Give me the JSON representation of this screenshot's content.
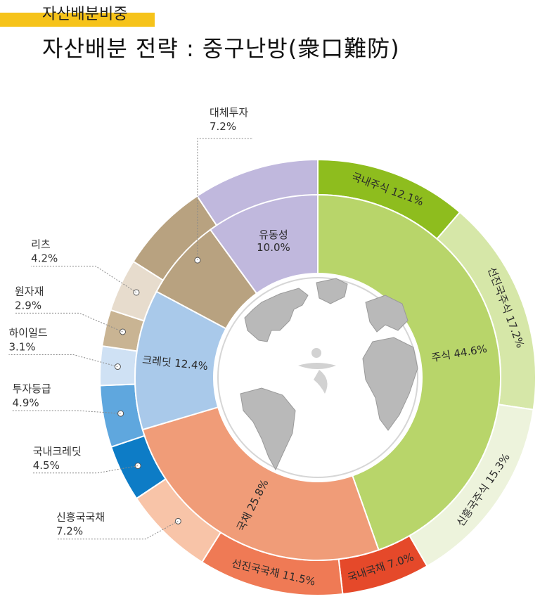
{
  "header": {
    "tag": "자산배분비중",
    "title": "자산배분 전략 : 중구난방(衆口難防)"
  },
  "chart_data": {
    "type": "pie",
    "subtype": "sunburst",
    "inner": [
      {
        "name": "주식",
        "value": 44.6,
        "label": "주식 44.6%",
        "color": "#b8d56a"
      },
      {
        "name": "국채",
        "value": 25.8,
        "label": "국채 25.8%",
        "color": "#f09c78"
      },
      {
        "name": "크레딧",
        "value": 12.4,
        "label": "크레딧 12.4%",
        "color": "#a9c9ea"
      },
      {
        "name": "대체투자",
        "value": 7.2,
        "label": "",
        "color": "#b8a280"
      },
      {
        "name": "유동성",
        "value": 10.0,
        "label": "유동성\n10.0%",
        "color": "#c0b8dd"
      }
    ],
    "outer": [
      {
        "name": "국내주식",
        "value": 12.1,
        "label": "국내주식 12.1%",
        "color": "#8ebd1e"
      },
      {
        "name": "선진국주식",
        "value": 17.2,
        "label": "선진국주식 17.2%",
        "color": "#d6e7a8"
      },
      {
        "name": "신흥국주식",
        "value": 15.3,
        "label": "신흥국주식 15.3%",
        "color": "#edf3dc"
      },
      {
        "name": "국내국채",
        "value": 7.0,
        "label": "국내국채 7.0%",
        "color": "#e5492a"
      },
      {
        "name": "선진국국채",
        "value": 11.5,
        "label": "선진국국채 11.5%",
        "color": "#ef7a55"
      },
      {
        "name": "신흥국국채",
        "value": 7.2,
        "label": "",
        "ext_label": [
          "신흥국국채",
          "7.2%"
        ],
        "color": "#f8c4a8"
      },
      {
        "name": "국내크레딧",
        "value": 4.5,
        "label": "",
        "ext_label": [
          "국내크레딧",
          "4.5%"
        ],
        "color": "#0d7cc6"
      },
      {
        "name": "투자등급",
        "value": 4.9,
        "label": "",
        "ext_label": [
          "투자등급",
          "4.9%"
        ],
        "color": "#5fa7de"
      },
      {
        "name": "하이일드",
        "value": 3.1,
        "label": "",
        "ext_label": [
          "하이일드",
          "3.1%"
        ],
        "color": "#cfe1f4"
      },
      {
        "name": "원자재",
        "value": 2.9,
        "label": "",
        "ext_label": [
          "원자재",
          "2.9%"
        ],
        "color": "#c9b493"
      },
      {
        "name": "리츠",
        "value": 4.2,
        "label": "",
        "ext_label": [
          "리츠",
          "4.2%"
        ],
        "color": "#e7dccd"
      },
      {
        "name": "대체투자",
        "value": 7.2,
        "label": "",
        "ext_label": [
          "대체투자",
          "7.2%"
        ],
        "color": "#b8a280"
      },
      {
        "name": "유동성",
        "value": 10.0,
        "label": "",
        "color": "#c0b8dd"
      }
    ]
  }
}
